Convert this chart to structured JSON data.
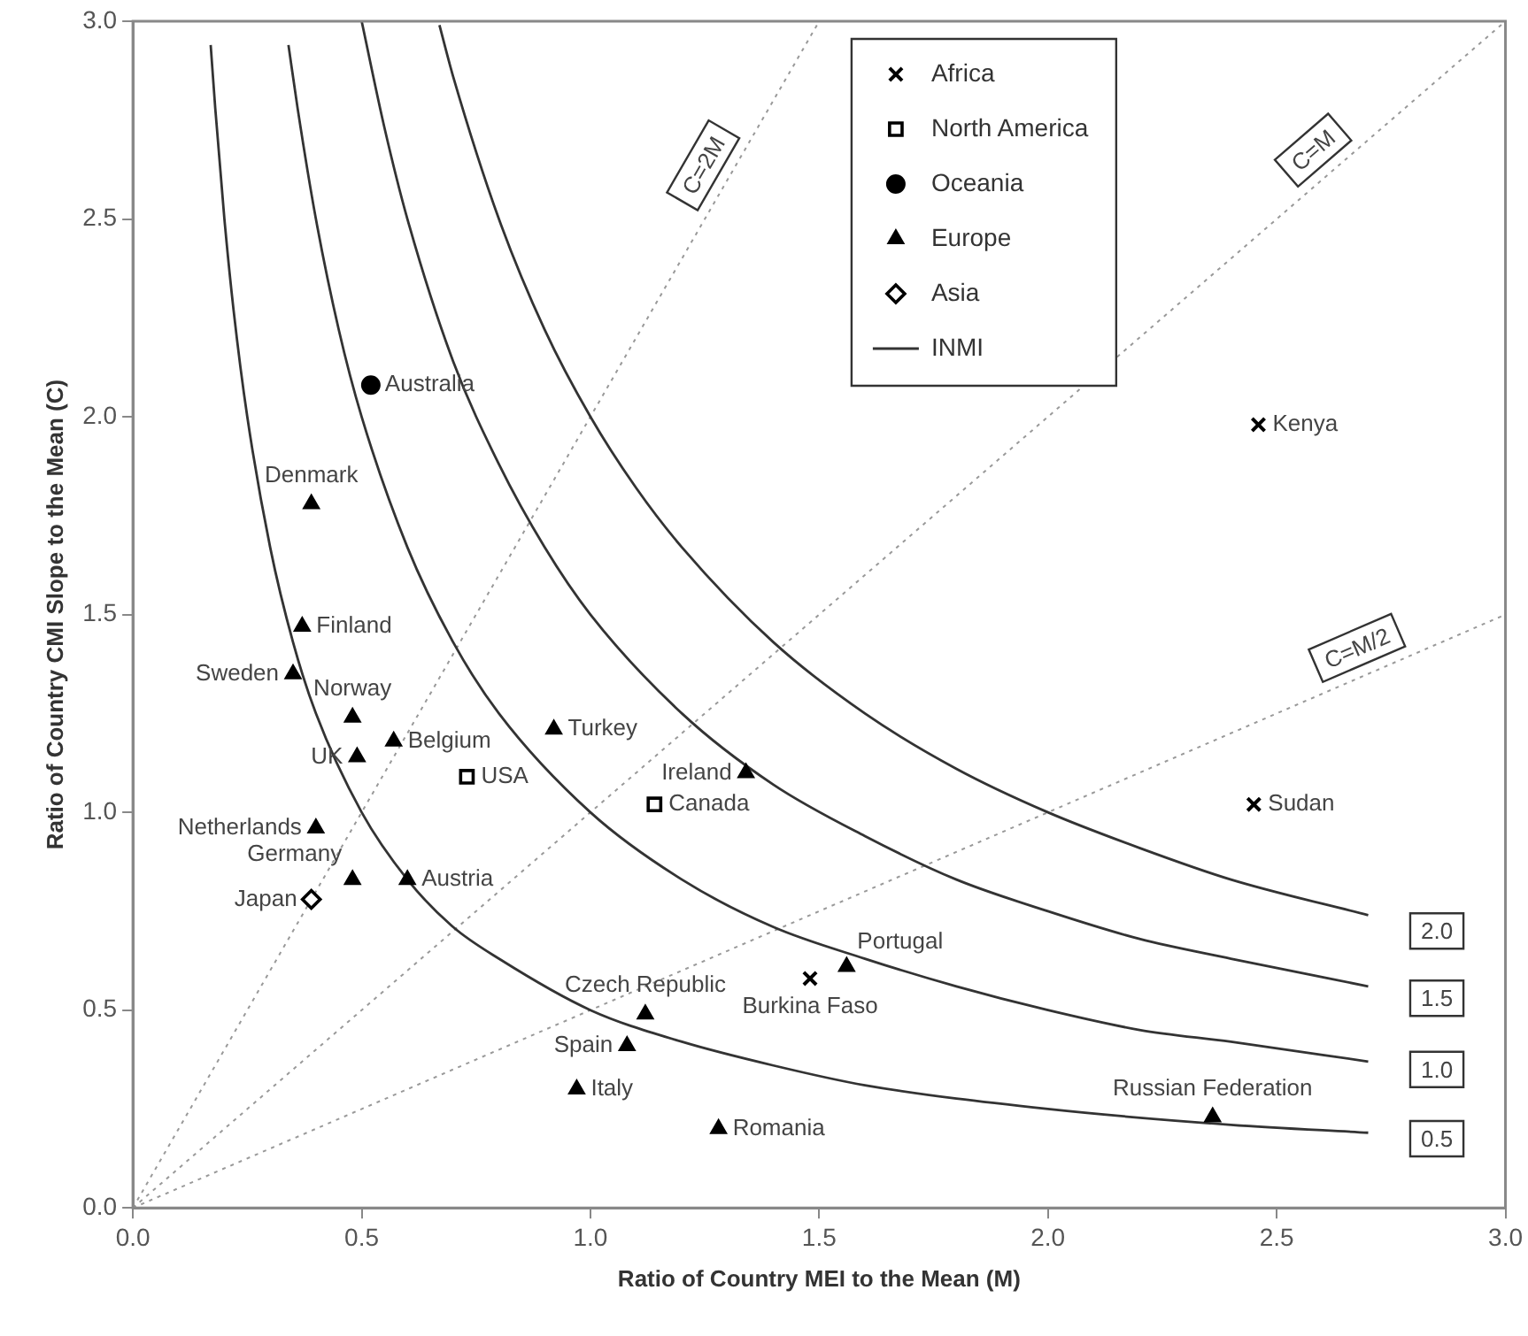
{
  "chart_data": {
    "type": "scatter",
    "xlabel": "Ratio of Country MEI to the Mean (M)",
    "ylabel": "Ratio of Country CMI Slope to the Mean (C)",
    "xlim": [
      0,
      3
    ],
    "ylim": [
      0,
      3
    ],
    "xticks": [
      {
        "value": 0,
        "label": "0.0"
      },
      {
        "value": 0.5,
        "label": "0.5"
      },
      {
        "value": 1,
        "label": "1.0"
      },
      {
        "value": 1.5,
        "label": "1.5"
      },
      {
        "value": 2,
        "label": "2.0"
      },
      {
        "value": 2.5,
        "label": "2.5"
      },
      {
        "value": 3,
        "label": "3.0"
      }
    ],
    "yticks": [
      {
        "value": 0,
        "label": "0.0"
      },
      {
        "value": 0.5,
        "label": "0.5"
      },
      {
        "value": 1,
        "label": "1.0"
      },
      {
        "value": 1.5,
        "label": "1.5"
      },
      {
        "value": 2,
        "label": "2.0"
      },
      {
        "value": 2.5,
        "label": "2.5"
      },
      {
        "value": 3,
        "label": "3.0"
      }
    ],
    "legend": "top",
    "series": [
      {
        "name": "Africa",
        "marker": "cross",
        "color": "#000000",
        "x": [
          2.46,
          2.45,
          1.48
        ],
        "values": [
          1.98,
          1.02,
          0.58
        ]
      },
      {
        "name": "North America",
        "marker": "square",
        "color": "#000000",
        "x": [
          0.73,
          1.14
        ],
        "values": [
          1.09,
          1.02
        ]
      },
      {
        "name": "Oceania",
        "marker": "circle",
        "color": "#000000",
        "x": [
          0.52
        ],
        "values": [
          2.08
        ]
      },
      {
        "name": "Europe",
        "marker": "triangle",
        "color": "#000000",
        "x": [
          0.39,
          0.37,
          0.35,
          0.48,
          0.49,
          0.57,
          0.92,
          1.34,
          0.4,
          0.48,
          0.6,
          1.56,
          1.12,
          1.08,
          0.97,
          1.28,
          2.36
        ],
        "values": [
          1.78,
          1.47,
          1.35,
          1.24,
          1.14,
          1.18,
          1.21,
          1.1,
          0.96,
          0.83,
          0.83,
          0.61,
          0.49,
          0.41,
          0.3,
          0.2,
          0.23
        ]
      },
      {
        "name": "Asia",
        "marker": "diamond",
        "color": "#000000",
        "x": [
          0.39
        ],
        "values": [
          0.78
        ]
      },
      {
        "name": "INMI",
        "type": "line",
        "line_style": "solid",
        "color": "#333333",
        "x": [
          0.67,
          0.7,
          0.8,
          0.9,
          1.0,
          1.1,
          1.2,
          1.4,
          1.6,
          1.8,
          2.0,
          2.2,
          2.4,
          2.7
        ],
        "values": [
          2.99,
          2.86,
          2.5,
          2.22,
          2.0,
          1.82,
          1.67,
          1.43,
          1.25,
          1.11,
          1.0,
          0.91,
          0.83,
          0.74
        ]
      },
      {
        "type": "line",
        "line_style": "solid",
        "color": "#333333",
        "x": [
          0.5,
          0.55,
          0.6,
          0.7,
          0.8,
          0.9,
          1.0,
          1.2,
          1.4,
          1.6,
          1.8,
          2.0,
          2.2,
          2.4,
          2.7
        ],
        "values": [
          3.0,
          2.73,
          2.5,
          2.14,
          1.88,
          1.67,
          1.5,
          1.25,
          1.07,
          0.94,
          0.83,
          0.75,
          0.68,
          0.63,
          0.56
        ]
      },
      {
        "type": "line",
        "line_style": "solid",
        "color": "#333333",
        "x": [
          0.34,
          0.36,
          0.4,
          0.45,
          0.5,
          0.6,
          0.7,
          0.8,
          1.0,
          1.2,
          1.4,
          1.6,
          1.8,
          2.0,
          2.2,
          2.4,
          2.7
        ],
        "values": [
          2.94,
          2.78,
          2.5,
          2.22,
          2.0,
          1.67,
          1.43,
          1.25,
          1.0,
          0.83,
          0.71,
          0.63,
          0.56,
          0.5,
          0.45,
          0.42,
          0.37
        ]
      },
      {
        "type": "line",
        "line_style": "solid",
        "color": "#333333",
        "x": [
          0.17,
          0.18,
          0.2,
          0.22,
          0.25,
          0.3,
          0.35,
          0.4,
          0.5,
          0.6,
          0.7,
          0.8,
          1.0,
          1.2,
          1.4,
          1.6,
          2.0,
          2.4,
          2.7
        ],
        "values": [
          2.94,
          2.78,
          2.5,
          2.27,
          2.0,
          1.67,
          1.43,
          1.25,
          1.0,
          0.83,
          0.71,
          0.63,
          0.5,
          0.42,
          0.36,
          0.31,
          0.25,
          0.21,
          0.19
        ]
      },
      {
        "type": "line",
        "line_style": "dotted",
        "color": "#999999",
        "x": [
          0,
          1.5
        ],
        "values": [
          0,
          3
        ]
      },
      {
        "type": "line",
        "line_style": "dotted",
        "color": "#999999",
        "x": [
          0,
          3
        ],
        "values": [
          0,
          3
        ]
      },
      {
        "type": "line",
        "line_style": "dotted",
        "color": "#999999",
        "x": [
          0,
          3
        ],
        "values": [
          0,
          1.5
        ]
      }
    ],
    "annotations": [
      {
        "text": "Kenya",
        "x": 2.46,
        "y": 1.98
      },
      {
        "text": "Sudan",
        "x": 2.45,
        "y": 1.02
      },
      {
        "text": "Burkina Faso",
        "x": 1.48,
        "y": 0.58
      },
      {
        "text": "USA",
        "x": 0.73,
        "y": 1.09
      },
      {
        "text": "Canada",
        "x": 1.14,
        "y": 1.02
      },
      {
        "text": "Australia",
        "x": 0.52,
        "y": 2.08
      },
      {
        "text": "Denmark",
        "x": 0.39,
        "y": 1.78
      },
      {
        "text": "Finland",
        "x": 0.37,
        "y": 1.47
      },
      {
        "text": "Sweden",
        "x": 0.35,
        "y": 1.35
      },
      {
        "text": "Norway",
        "x": 0.48,
        "y": 1.24
      },
      {
        "text": "UK",
        "x": 0.49,
        "y": 1.14
      },
      {
        "text": "Belgium",
        "x": 0.57,
        "y": 1.18
      },
      {
        "text": "Turkey",
        "x": 0.92,
        "y": 1.21
      },
      {
        "text": "Ireland",
        "x": 1.34,
        "y": 1.1
      },
      {
        "text": "Netherlands",
        "x": 0.4,
        "y": 0.96
      },
      {
        "text": "Germany",
        "x": 0.48,
        "y": 0.83
      },
      {
        "text": "Austria",
        "x": 0.6,
        "y": 0.83
      },
      {
        "text": "Portugal",
        "x": 1.56,
        "y": 0.61
      },
      {
        "text": "Czech Republic",
        "x": 1.12,
        "y": 0.49
      },
      {
        "text": "Spain",
        "x": 1.08,
        "y": 0.41
      },
      {
        "text": "Italy",
        "x": 0.97,
        "y": 0.3
      },
      {
        "text": "Romania",
        "x": 1.28,
        "y": 0.2
      },
      {
        "text": "Russian Federation",
        "x": 2.36,
        "y": 0.23
      },
      {
        "text": "Japan",
        "x": 0.39,
        "y": 0.78
      },
      {
        "text": "C=2M",
        "x": 1.3,
        "y": 2.6
      },
      {
        "text": "C=M",
        "x": 2.62,
        "y": 2.62
      },
      {
        "text": "C=M/2",
        "x": 2.7,
        "y": 1.35
      },
      {
        "text": "2.0",
        "x": 2.85,
        "y": 0.7
      },
      {
        "text": "1.5",
        "x": 2.85,
        "y": 0.53
      },
      {
        "text": "1.0",
        "x": 2.85,
        "y": 0.35
      },
      {
        "text": "0.5",
        "x": 2.85,
        "y": 0.175
      }
    ]
  }
}
